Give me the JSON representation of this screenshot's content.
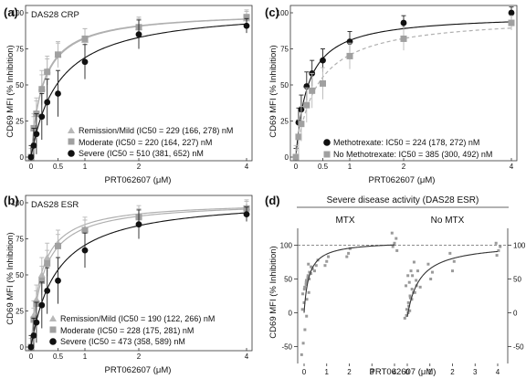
{
  "figure_letters": {
    "a": "(a)",
    "b": "(b)",
    "c": "(c)",
    "d": "(d)"
  },
  "colors": {
    "remission": "#b8b8b8",
    "moderate": "#a0a0a0",
    "severe": "#111111",
    "axis": "#333333",
    "error_light": "#b8b8b8",
    "reference_line": "#666666"
  },
  "panel_d_header": "Severe disease activity (DAS28 ESR)",
  "chart_data": [
    {
      "id": "a",
      "type": "line",
      "title": "DAS28 CRP",
      "xlabel": "PRT062607 (μM)",
      "ylabel": "CD69 MFI (% Inhibition)",
      "xlim": [
        0,
        4
      ],
      "ylim": [
        0,
        100
      ],
      "xticks": [
        0,
        0.5,
        1,
        2,
        4
      ],
      "xticklabels": [
        "0",
        "0.5",
        "1",
        "2",
        "4"
      ],
      "yticks": [
        0,
        25,
        50,
        75,
        100
      ],
      "legend_position": "bottom-right",
      "series": [
        {
          "name": "Remission/Mild (IC50 = 229 (166, 278) nM",
          "marker": "triangle",
          "color": "#b8b8b8",
          "dash": false,
          "x": [
            0,
            0.05,
            0.1,
            0.2,
            0.3,
            0.5,
            1,
            2,
            4
          ],
          "y": [
            0,
            20,
            31,
            48,
            60,
            71,
            81,
            90,
            96
          ],
          "err": [
            8,
            10,
            10,
            12,
            10,
            9,
            8,
            7,
            5
          ],
          "fit": {
            "max": 101,
            "ic50": 0.229
          }
        },
        {
          "name": "Moderate (IC50 = 220 (164, 227) nM",
          "marker": "square",
          "color": "#a0a0a0",
          "dash": false,
          "x": [
            0,
            0.05,
            0.1,
            0.2,
            0.3,
            0.5,
            1,
            2,
            4
          ],
          "y": [
            0,
            20,
            30,
            47,
            59,
            71,
            82,
            90,
            97
          ],
          "err": [
            6,
            8,
            9,
            10,
            9,
            8,
            7,
            6,
            5
          ],
          "fit": {
            "max": 101,
            "ic50": 0.22
          }
        },
        {
          "name": "Severe (IC50 = 510 (381, 652) nM",
          "marker": "circle",
          "color": "#111111",
          "dash": false,
          "x": [
            0,
            0.05,
            0.1,
            0.2,
            0.3,
            0.5,
            1,
            2,
            4
          ],
          "y": [
            0,
            8,
            16,
            28,
            38,
            44,
            66,
            85,
            91
          ],
          "err": [
            8,
            12,
            14,
            16,
            16,
            16,
            12,
            10,
            5
          ],
          "fit": {
            "max": 104,
            "ic50": 0.51
          }
        }
      ]
    },
    {
      "id": "b",
      "type": "line",
      "title": "DAS28 ESR",
      "xlabel": "PRT062607 (μM)",
      "ylabel": "CD69 MFI (% Inhibition)",
      "xlim": [
        0,
        4
      ],
      "ylim": [
        0,
        100
      ],
      "xticks": [
        0,
        0.5,
        1,
        2,
        4
      ],
      "xticklabels": [
        "0",
        "0.5",
        "1",
        "2",
        "4"
      ],
      "yticks": [
        0,
        25,
        50,
        75,
        100
      ],
      "legend_position": "bottom-right",
      "series": [
        {
          "name": "Remission/Mild (IC50 = 190 (122, 266) nM",
          "marker": "triangle",
          "color": "#b8b8b8",
          "dash": false,
          "x": [
            0,
            0.05,
            0.1,
            0.2,
            0.3,
            0.5,
            1,
            2,
            4
          ],
          "y": [
            0,
            22,
            33,
            50,
            62,
            72,
            82,
            91,
            97
          ],
          "err": [
            8,
            10,
            10,
            12,
            10,
            9,
            8,
            7,
            5
          ],
          "fit": {
            "max": 101,
            "ic50": 0.19
          }
        },
        {
          "name": "Moderate (IC50 = 228 (175, 281) nM",
          "marker": "square",
          "color": "#a0a0a0",
          "dash": false,
          "x": [
            0,
            0.05,
            0.1,
            0.2,
            0.3,
            0.5,
            1,
            2,
            4
          ],
          "y": [
            0,
            19,
            30,
            46,
            58,
            70,
            81,
            90,
            96
          ],
          "err": [
            6,
            8,
            9,
            10,
            9,
            8,
            7,
            6,
            5
          ],
          "fit": {
            "max": 101,
            "ic50": 0.228
          }
        },
        {
          "name": "Severe (IC50 = 473 (358, 589) nM",
          "marker": "circle",
          "color": "#111111",
          "dash": false,
          "x": [
            0,
            0.05,
            0.1,
            0.2,
            0.3,
            0.5,
            1,
            2,
            4
          ],
          "y": [
            0,
            8,
            17,
            29,
            39,
            46,
            67,
            85,
            92
          ],
          "err": [
            8,
            12,
            14,
            16,
            16,
            16,
            12,
            10,
            5
          ],
          "fit": {
            "max": 104,
            "ic50": 0.473
          }
        }
      ]
    },
    {
      "id": "c",
      "type": "line",
      "title": "",
      "xlabel": "PRT062607 (μM)",
      "ylabel": "CD69 MFI (% Inhibition)",
      "xlim": [
        0,
        4
      ],
      "ylim": [
        0,
        100
      ],
      "xticks": [
        0,
        0.5,
        1,
        2,
        4
      ],
      "xticklabels": [
        "0",
        "0.5",
        "1",
        "2",
        "4"
      ],
      "yticks": [
        0,
        25,
        50,
        75,
        100
      ],
      "legend_position": "bottom-right",
      "series": [
        {
          "name": "Methotrexate: IC50 = 224 (178, 272) nM",
          "marker": "circle",
          "color": "#111111",
          "dash": false,
          "x": [
            0,
            0.05,
            0.1,
            0.2,
            0.3,
            0.5,
            1,
            2,
            4
          ],
          "y": [
            0,
            24,
            33,
            49,
            58,
            67,
            80,
            93,
            100
          ],
          "err": [
            6,
            10,
            10,
            10,
            9,
            8,
            7,
            5,
            4
          ],
          "fit": {
            "max": 99,
            "ic50": 0.224
          }
        },
        {
          "name": "No Methotrexate: IC50 = 385 (300, 492) nM",
          "marker": "square",
          "color": "#a0a0a0",
          "dash": true,
          "x": [
            0,
            0.05,
            0.1,
            0.2,
            0.3,
            0.5,
            1,
            2,
            4
          ],
          "y": [
            0,
            14,
            23,
            36,
            46,
            51,
            70,
            82,
            93
          ],
          "err": [
            8,
            12,
            12,
            12,
            12,
            11,
            9,
            8,
            5
          ],
          "fit": {
            "max": 98,
            "ic50": 0.385
          }
        }
      ]
    },
    {
      "id": "d",
      "type": "scatter",
      "title": "Severe disease activity (DAS28 ESR)",
      "xlabel": "PRT062607 (μM)",
      "ylabel": "CD69 MFI (% Inhibition)",
      "ylim": [
        -75,
        125
      ],
      "yticks": [
        -50,
        0,
        50,
        100
      ],
      "reference_line_y": 100,
      "subpanels": [
        {
          "label": "MTX",
          "xlim": [
            0,
            4
          ],
          "xticks": [
            0,
            1,
            2,
            3,
            4
          ],
          "fit": {
            "max": 106,
            "ic50": 0.22
          },
          "points": [
            [
              0,
              -62
            ],
            [
              0,
              -45
            ],
            [
              0,
              -25
            ],
            [
              0,
              -5
            ],
            [
              0,
              5
            ],
            [
              0,
              15
            ],
            [
              0.05,
              20
            ],
            [
              0.05,
              28
            ],
            [
              0.05,
              35
            ],
            [
              0.05,
              42
            ],
            [
              0.1,
              30
            ],
            [
              0.1,
              38
            ],
            [
              0.1,
              48
            ],
            [
              0.1,
              55
            ],
            [
              0.2,
              45
            ],
            [
              0.2,
              52
            ],
            [
              0.2,
              60
            ],
            [
              0.2,
              68
            ],
            [
              0.3,
              50
            ],
            [
              0.3,
              58
            ],
            [
              0.3,
              65
            ],
            [
              0.3,
              72
            ],
            [
              0.5,
              62
            ],
            [
              0.5,
              70
            ],
            [
              0.5,
              78
            ],
            [
              1,
              70
            ],
            [
              1,
              76
            ],
            [
              1,
              83
            ],
            [
              2,
              83
            ],
            [
              2,
              88
            ],
            [
              2,
              95
            ],
            [
              4,
              92
            ],
            [
              4,
              98
            ],
            [
              4,
              103
            ],
            [
              4,
              110
            ],
            [
              4,
              118
            ]
          ]
        },
        {
          "label": "No MTX",
          "xlim": [
            0,
            4
          ],
          "xticks": [
            0,
            1,
            2,
            3,
            4
          ],
          "fit": {
            "max": 110,
            "ic50": 0.55,
            "offset": -6
          },
          "points": [
            [
              0,
              -8
            ],
            [
              0,
              -4
            ],
            [
              0,
              0
            ],
            [
              0,
              3
            ],
            [
              0.05,
              5
            ],
            [
              0.05,
              15
            ],
            [
              0.05,
              25
            ],
            [
              0.05,
              40
            ],
            [
              0.1,
              10
            ],
            [
              0.1,
              22
            ],
            [
              0.1,
              35
            ],
            [
              0.1,
              55
            ],
            [
              0.2,
              20
            ],
            [
              0.2,
              30
            ],
            [
              0.2,
              45
            ],
            [
              0.2,
              62
            ],
            [
              0.3,
              30
            ],
            [
              0.3,
              40
            ],
            [
              0.3,
              55
            ],
            [
              0.3,
              75
            ],
            [
              0.5,
              38
            ],
            [
              0.5,
              48
            ],
            [
              0.5,
              62
            ],
            [
              1,
              50
            ],
            [
              1,
              60
            ],
            [
              1,
              72
            ],
            [
              2,
              62
            ],
            [
              2,
              76
            ],
            [
              2,
              88
            ],
            [
              4,
              85
            ],
            [
              4,
              92
            ],
            [
              4,
              98
            ],
            [
              4,
              103
            ]
          ]
        }
      ]
    }
  ]
}
